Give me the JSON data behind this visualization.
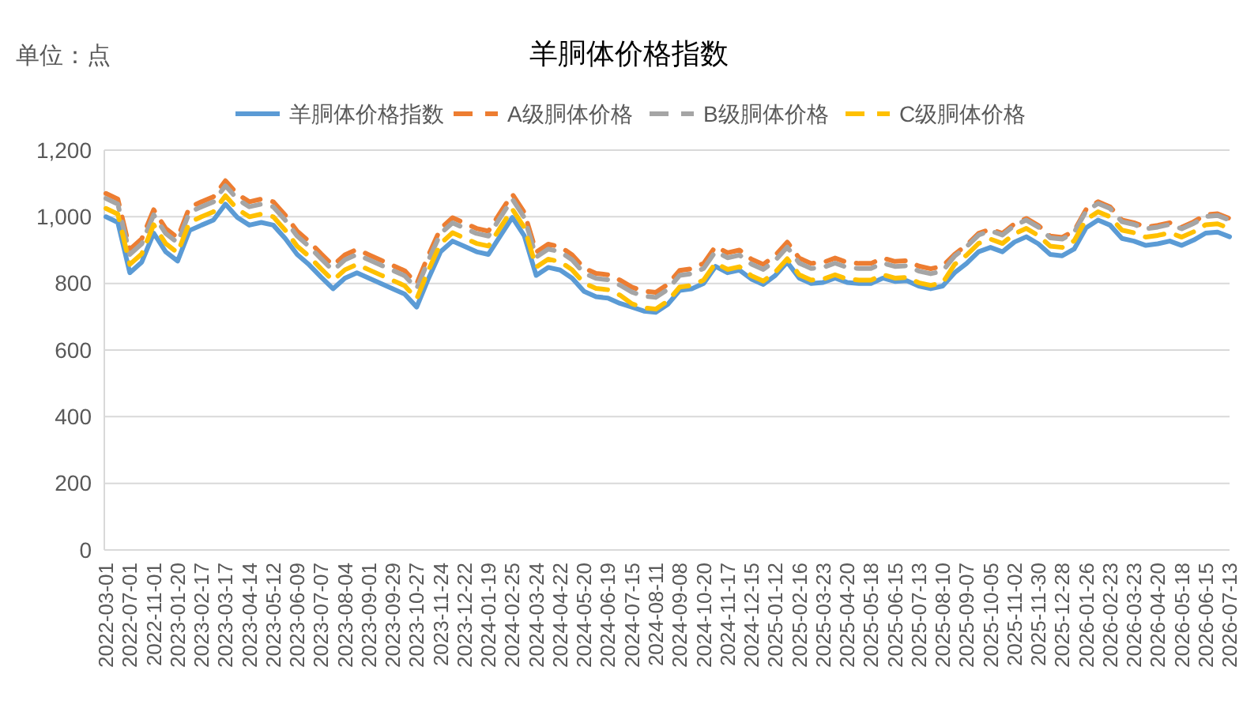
{
  "chart_data": {
    "type": "line",
    "title": "羊胴体价格指数",
    "annotations": [
      "单位：点"
    ],
    "categories": [
      "2022-03-01",
      null,
      "2022-07-01",
      null,
      "2022-11-01",
      null,
      "2023-01-20",
      null,
      "2023-02-17",
      null,
      "2023-03-17",
      null,
      "2023-04-14",
      null,
      "2023-05-12",
      null,
      "2023-06-09",
      null,
      "2023-07-07",
      null,
      "2023-08-04",
      null,
      "2023-09-01",
      null,
      "2023-09-29",
      null,
      "2023-10-27",
      null,
      "2023-11-24",
      null,
      "2023-12-22",
      null,
      "2024-01-19",
      null,
      "2024-02-25",
      null,
      "2024-03-24",
      null,
      "2024-04-22",
      null,
      "2024-05-20",
      null,
      "2024-06-19",
      null,
      "2024-07-15",
      null,
      "2024-08-11",
      null,
      "2024-09-08",
      null,
      "2024-10-20",
      null,
      "2024-11-17",
      null,
      "2024-12-15",
      null,
      "2025-01-12",
      null,
      "2025-02-16",
      null,
      "2025-03-23",
      null,
      "2025-04-20",
      null,
      "2025-05-18",
      null,
      "2025-06-15",
      null,
      "2025-07-13",
      null,
      "2025-08-10",
      null,
      "2025-09-07",
      null,
      "2025-10-05",
      null,
      "2025-11-02",
      null,
      "2025-11-30",
      null,
      "2025-12-28",
      null,
      "2026-01-26",
      null,
      "2026-02-23",
      null,
      "2026-03-23",
      null,
      "2026-04-20",
      null,
      "2026-05-18",
      null,
      "2026-06-15",
      null,
      "2026-07-13"
    ],
    "series": [
      {
        "name": "羊胴体价格指数",
        "color": "#5b9bd5",
        "line_style": "solid",
        "values": [
          1000,
          983,
          832,
          864,
          951,
          895,
          867,
          959,
          975,
          990,
          1038,
          998,
          975,
          983,
          975,
          935,
          887,
          856,
          819,
          784,
          816,
          832,
          816,
          800,
          784,
          768,
          729,
          816,
          895,
          927,
          911,
          895,
          887,
          943,
          998,
          943,
          824,
          848,
          840,
          816,
          776,
          760,
          756,
          740,
          729,
          717,
          713,
          737,
          779,
          784,
          800,
          851,
          832,
          840,
          813,
          797,
          824,
          864,
          816,
          800,
          803,
          816,
          803,
          800,
          800,
          816,
          806,
          808,
          792,
          784,
          792,
          832,
          860,
          895,
          908,
          895,
          924,
          940,
          919,
          887,
          883,
          903,
          967,
          990,
          975,
          935,
          927,
          914,
          919,
          927,
          914,
          930,
          951,
          954,
          940
        ]
      },
      {
        "name": "A级胴体价格",
        "color": "#ed7d31",
        "line_style": "dashed",
        "values": [
          1070,
          1053,
          902,
          934,
          1021,
          965,
          937,
          1029,
          1045,
          1060,
          1108,
          1068,
          1045,
          1053,
          1045,
          1005,
          957,
          926,
          889,
          854,
          886,
          902,
          886,
          870,
          854,
          838,
          799,
          886,
          965,
          997,
          981,
          965,
          957,
          1013,
          1068,
          1013,
          894,
          918,
          910,
          886,
          846,
          830,
          826,
          810,
          789,
          777,
          773,
          797,
          839,
          844,
          860,
          911,
          892,
          900,
          873,
          857,
          884,
          924,
          876,
          860,
          863,
          876,
          863,
          860,
          860,
          876,
          866,
          868,
          852,
          844,
          852,
          887,
          915,
          950,
          963,
          950,
          979,
          995,
          974,
          942,
          938,
          958,
          1022,
          1045,
          1030,
          990,
          982,
          969,
          974,
          982,
          969,
          985,
          1006,
          1009,
          995
        ]
      },
      {
        "name": "B级胴体价格",
        "color": "#a5a5a5",
        "line_style": "dashed",
        "values": [
          1055,
          1038,
          887,
          919,
          1006,
          950,
          922,
          1014,
          1030,
          1045,
          1093,
          1053,
          1030,
          1038,
          1030,
          990,
          942,
          911,
          874,
          839,
          871,
          887,
          871,
          855,
          839,
          823,
          784,
          871,
          950,
          982,
          966,
          950,
          942,
          998,
          1053,
          998,
          879,
          903,
          895,
          871,
          831,
          815,
          811,
          795,
          774,
          762,
          758,
          782,
          824,
          829,
          845,
          896,
          877,
          885,
          858,
          842,
          869,
          909,
          861,
          845,
          848,
          861,
          848,
          845,
          845,
          861,
          851,
          853,
          837,
          829,
          837,
          882,
          910,
          945,
          958,
          945,
          974,
          990,
          969,
          937,
          933,
          953,
          1017,
          1040,
          1025,
          985,
          977,
          964,
          969,
          977,
          964,
          980,
          1001,
          1004,
          990
        ]
      },
      {
        "name": "C级胴体价格",
        "color": "#ffc000",
        "line_style": "dashed",
        "values": [
          1025,
          1008,
          857,
          889,
          976,
          920,
          892,
          984,
          1000,
          1015,
          1063,
          1023,
          1000,
          1008,
          1000,
          960,
          912,
          881,
          844,
          809,
          841,
          857,
          841,
          825,
          809,
          793,
          754,
          841,
          920,
          952,
          936,
          920,
          912,
          968,
          1023,
          968,
          849,
          873,
          865,
          841,
          801,
          785,
          781,
          765,
          739,
          727,
          723,
          747,
          789,
          794,
          810,
          861,
          842,
          850,
          823,
          807,
          834,
          874,
          826,
          810,
          813,
          826,
          813,
          810,
          810,
          826,
          816,
          818,
          802,
          794,
          802,
          857,
          885,
          920,
          933,
          920,
          949,
          965,
          944,
          912,
          908,
          928,
          992,
          1015,
          1000,
          960,
          952,
          939,
          944,
          952,
          939,
          955,
          976,
          979,
          965
        ]
      }
    ],
    "ylim": [
      0,
      1200
    ],
    "yticks": [
      0,
      200,
      400,
      600,
      800,
      {
        "value": 1000,
        "label": "1,000"
      },
      {
        "value": 1200,
        "label": "1,200"
      }
    ],
    "grid": "y",
    "legend": "top",
    "marker": "none"
  }
}
